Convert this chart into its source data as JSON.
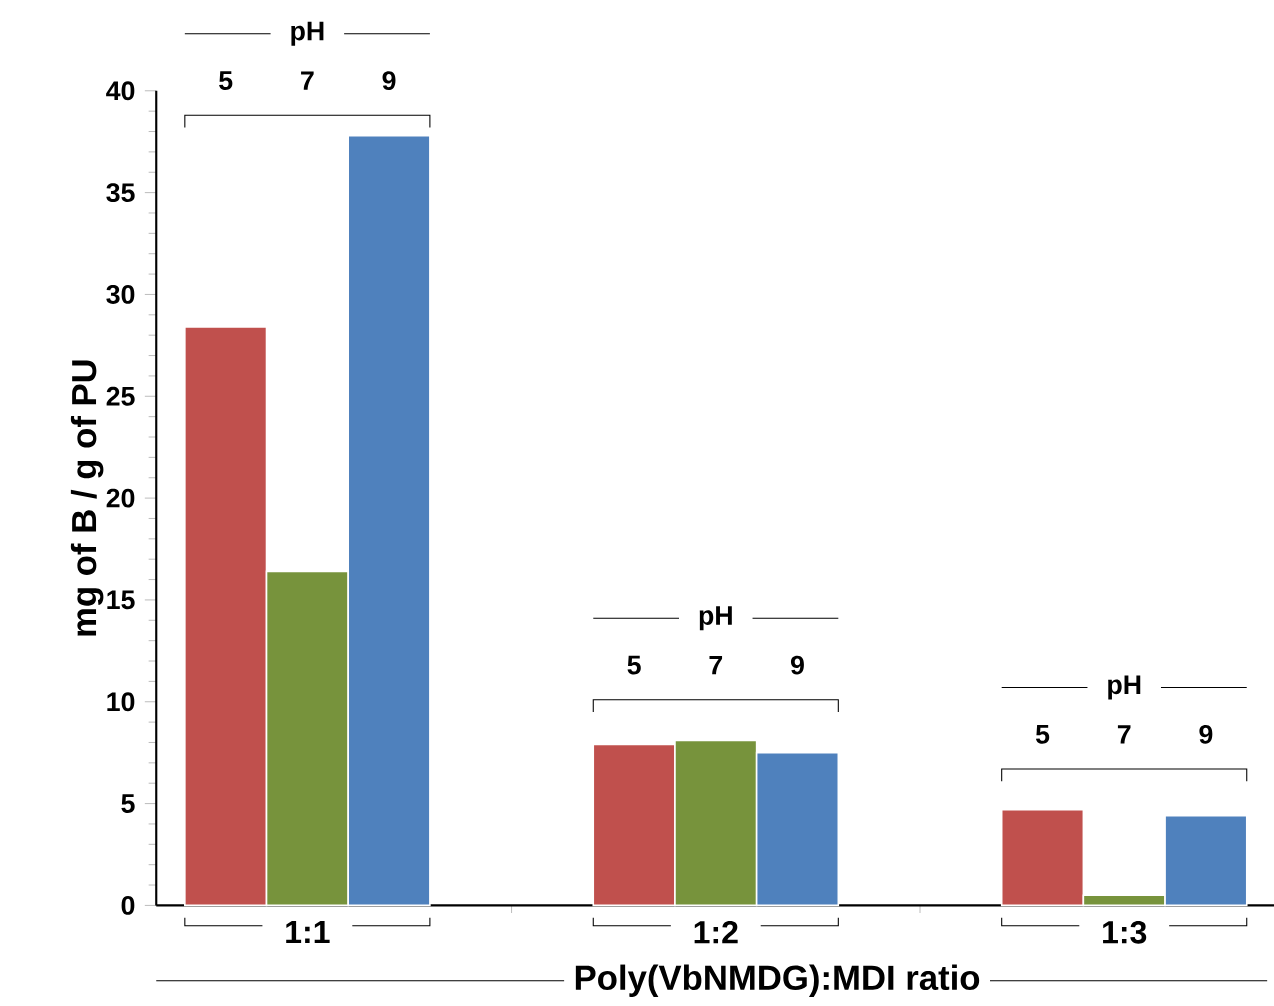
{
  "chart_data": {
    "type": "bar",
    "xlabel": "Poly(VbNMDG):MDI  ratio",
    "ylabel": "mg of B / g of PU",
    "legend_title": "pH",
    "categories": [
      "1:1",
      "1:2",
      "1:3"
    ],
    "series": [
      {
        "name": "5",
        "color": "#c0504d",
        "values": [
          28.4,
          7.9,
          4.7
        ]
      },
      {
        "name": "7",
        "color": "#77933c",
        "values": [
          16.4,
          8.1,
          0.5
        ]
      },
      {
        "name": "9",
        "color": "#4f81bd",
        "values": [
          37.8,
          7.5,
          4.4
        ]
      }
    ],
    "ylim": [
      0,
      40
    ],
    "yticks": [
      0,
      5,
      10,
      15,
      20,
      25,
      30,
      35,
      40
    ]
  }
}
